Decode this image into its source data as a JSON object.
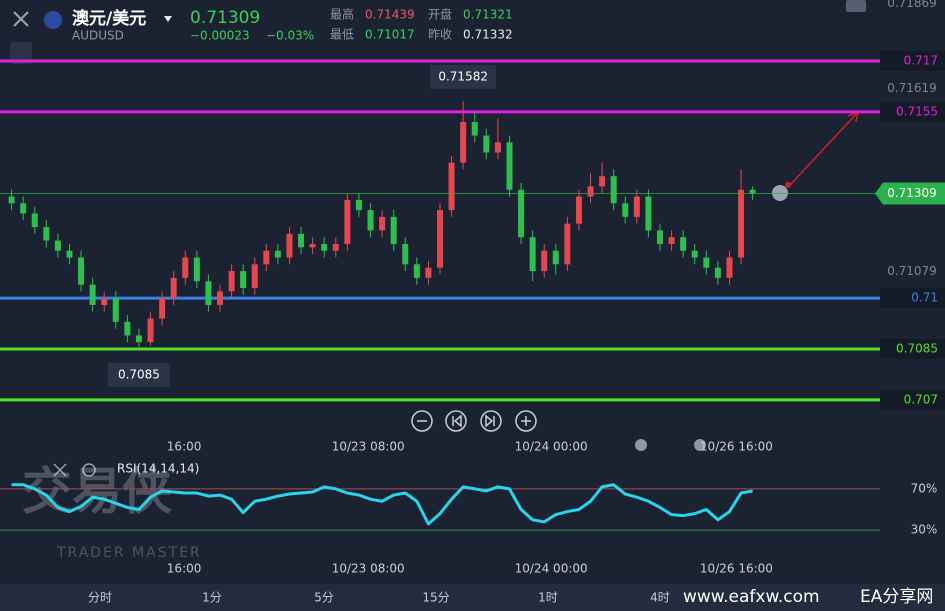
{
  "header": {
    "symbol": "澳元/美元",
    "code": "AUDUSD",
    "price": "0.71309",
    "change": "−0.00023",
    "change_pct": "−0.03%",
    "stats": [
      {
        "label": "最高",
        "value": "0.71439",
        "color": "#f0555a"
      },
      {
        "label": "开盘",
        "value": "0.71321",
        "color": "#3ccf5a"
      },
      {
        "label": "最低",
        "value": "0.71017",
        "color": "#3ccf5a"
      },
      {
        "label": "昨收",
        "value": "0.71332",
        "color": "#e8ecf2"
      }
    ]
  },
  "chart_data": [
    {
      "type": "candlestick",
      "up_color": "#e4474d",
      "down_color": "#2fbf4f",
      "x": [
        1,
        2,
        3,
        4,
        5,
        6,
        7,
        8,
        9,
        10,
        11,
        12,
        13,
        14,
        15,
        16,
        17,
        18,
        19,
        20,
        21,
        22,
        23,
        24,
        25,
        26,
        27,
        28,
        29,
        30,
        31,
        32,
        33,
        34,
        35,
        36,
        37,
        38,
        39,
        40,
        41,
        42,
        43,
        44,
        45,
        46,
        47,
        48,
        49,
        50,
        51,
        52,
        53,
        54,
        55,
        56,
        57,
        58,
        59,
        60,
        61,
        62,
        63,
        64,
        65
      ],
      "open": [
        0.713,
        0.7128,
        0.7125,
        0.7121,
        0.7117,
        0.7114,
        0.7112,
        0.7104,
        0.7098,
        0.71,
        0.7093,
        0.7089,
        0.7087,
        0.7094,
        0.71,
        0.7106,
        0.7112,
        0.7105,
        0.7098,
        0.7102,
        0.7108,
        0.7103,
        0.711,
        0.7114,
        0.7112,
        0.7119,
        0.7115,
        0.7116,
        0.7114,
        0.7116,
        0.7129,
        0.7126,
        0.712,
        0.7124,
        0.7116,
        0.711,
        0.7106,
        0.7109,
        0.7126,
        0.714,
        0.7152,
        0.7148,
        0.7143,
        0.7146,
        0.7132,
        0.7118,
        0.7108,
        0.7114,
        0.711,
        0.7122,
        0.713,
        0.7133,
        0.7136,
        0.7128,
        0.7124,
        0.713,
        0.712,
        0.7116,
        0.7118,
        0.7114,
        0.7112,
        0.7109,
        0.7106,
        0.7112,
        0.7132
      ],
      "high": [
        0.7132,
        0.713,
        0.7127,
        0.7123,
        0.7119,
        0.7116,
        0.7114,
        0.7106,
        0.7102,
        0.7102,
        0.7095,
        0.7091,
        0.7096,
        0.7102,
        0.7108,
        0.7114,
        0.7114,
        0.7107,
        0.7104,
        0.711,
        0.711,
        0.7112,
        0.7116,
        0.7116,
        0.7121,
        0.7121,
        0.7118,
        0.7118,
        0.7118,
        0.7131,
        0.7131,
        0.7128,
        0.7126,
        0.7126,
        0.7118,
        0.7112,
        0.7111,
        0.7128,
        0.7142,
        0.71582,
        0.7155,
        0.715,
        0.7153,
        0.7148,
        0.7134,
        0.712,
        0.7116,
        0.7116,
        0.7124,
        0.7132,
        0.7137,
        0.714,
        0.7138,
        0.713,
        0.7132,
        0.7132,
        0.7122,
        0.712,
        0.712,
        0.7116,
        0.7114,
        0.7111,
        0.7114,
        0.7138,
        0.7133
      ],
      "low": [
        0.7126,
        0.7123,
        0.7119,
        0.7115,
        0.7112,
        0.711,
        0.7102,
        0.7096,
        0.7096,
        0.7091,
        0.7087,
        0.7085,
        0.7086,
        0.7092,
        0.7098,
        0.7104,
        0.7103,
        0.7096,
        0.7096,
        0.71,
        0.7101,
        0.7101,
        0.7108,
        0.711,
        0.711,
        0.7113,
        0.7113,
        0.7112,
        0.7112,
        0.7114,
        0.7124,
        0.7118,
        0.7118,
        0.7114,
        0.7108,
        0.7104,
        0.7104,
        0.7107,
        0.7124,
        0.7138,
        0.7146,
        0.7141,
        0.7141,
        0.713,
        0.7116,
        0.7105,
        0.7106,
        0.7107,
        0.7108,
        0.712,
        0.7128,
        0.7131,
        0.7126,
        0.7122,
        0.7122,
        0.7118,
        0.7114,
        0.7114,
        0.7112,
        0.711,
        0.7107,
        0.7104,
        0.7104,
        0.711,
        0.7129
      ],
      "close": [
        0.7128,
        0.7125,
        0.7121,
        0.7117,
        0.7114,
        0.7112,
        0.7104,
        0.7098,
        0.71,
        0.7093,
        0.7089,
        0.7087,
        0.7094,
        0.71,
        0.7106,
        0.7112,
        0.7105,
        0.7098,
        0.7102,
        0.7108,
        0.7103,
        0.711,
        0.7114,
        0.7112,
        0.7119,
        0.7115,
        0.7116,
        0.7114,
        0.7116,
        0.7129,
        0.7126,
        0.712,
        0.7124,
        0.7116,
        0.711,
        0.7106,
        0.7109,
        0.7126,
        0.714,
        0.7152,
        0.7148,
        0.7143,
        0.7146,
        0.7132,
        0.7118,
        0.7108,
        0.7114,
        0.711,
        0.7122,
        0.713,
        0.7133,
        0.7136,
        0.7128,
        0.7124,
        0.713,
        0.712,
        0.7116,
        0.7118,
        0.7114,
        0.7112,
        0.7109,
        0.7106,
        0.7112,
        0.7132,
        0.71309
      ],
      "xlim": [
        0,
        76
      ],
      "ylim": [
        0.7067,
        0.7188
      ],
      "xticks": [
        {
          "value": 15.9,
          "label": "16:00"
        },
        {
          "value": 31.8,
          "label": "10/23 08:00"
        },
        {
          "value": 47.6,
          "label": "10/24 00:00"
        },
        {
          "value": 63.6,
          "label": "10/26 16:00"
        }
      ],
      "yticks": [
        0.71869,
        0.71619,
        0.71079
      ],
      "levels": [
        {
          "value": 0.717,
          "color": "#e11fe0"
        },
        {
          "value": 0.7155,
          "color": "#e11fe0"
        },
        {
          "value": 0.71,
          "color": "#3d7fe8"
        },
        {
          "value": 0.7085,
          "color": "#52e02a"
        },
        {
          "value": 0.707,
          "color": "#52e02a"
        }
      ],
      "last_color": "#2bb24c"
    },
    {
      "type": "line",
      "title": "RSI(14,14,14)",
      "color": "#2ad4ea",
      "x": [
        1,
        2,
        3,
        4,
        5,
        6,
        7,
        8,
        9,
        10,
        11,
        12,
        13,
        14,
        15,
        16,
        17,
        18,
        19,
        20,
        21,
        22,
        23,
        24,
        25,
        26,
        27,
        28,
        29,
        30,
        31,
        32,
        33,
        34,
        35,
        36,
        37,
        38,
        39,
        40,
        41,
        42,
        43,
        44,
        45,
        46,
        47,
        48,
        49,
        50,
        51,
        52,
        53,
        54,
        55,
        56,
        57,
        58,
        59,
        60,
        61,
        62,
        63,
        64,
        65
      ],
      "values": [
        74,
        74,
        70,
        64,
        52,
        48,
        53,
        62,
        60,
        56,
        52,
        50,
        62,
        68,
        67,
        66,
        66,
        63,
        64,
        60,
        47,
        58,
        60,
        63,
        65,
        66,
        67,
        72,
        70,
        66,
        64,
        60,
        58,
        64,
        66,
        58,
        36,
        46,
        60,
        72,
        70,
        68,
        72,
        70,
        50,
        40,
        38,
        45,
        48,
        50,
        58,
        72,
        74,
        65,
        62,
        58,
        52,
        45,
        44,
        46,
        50,
        40,
        48,
        66,
        68
      ],
      "xlim": [
        0,
        76
      ],
      "ylim": [
        0,
        100
      ],
      "xticks": [
        {
          "value": 15.9,
          "label": "16:00"
        },
        {
          "value": 31.8,
          "label": "10/23 08:00"
        },
        {
          "value": 47.6,
          "label": "10/24 00:00"
        },
        {
          "value": 63.6,
          "label": "10/26 16:00"
        }
      ],
      "yticks": [
        {
          "value": 70,
          "label": "70%",
          "color": "#b04a55"
        },
        {
          "value": 30,
          "label": "30%",
          "color": "#3a8a4a"
        }
      ]
    }
  ],
  "tabs": [
    "分时",
    "1分",
    "5分",
    "15分",
    "1时",
    "4时"
  ],
  "watermark": {
    "brand": "交易侠",
    "brand_en": "TRADER MASTER",
    "site": "www.eafxw.com",
    "site_name": "EA分享网"
  }
}
